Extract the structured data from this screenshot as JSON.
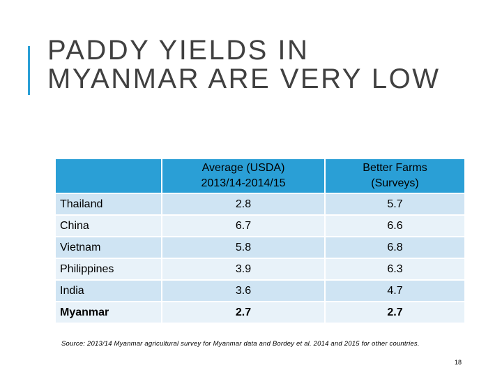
{
  "slide": {
    "title_lines": [
      "PADDY YIELDS IN",
      "MYANMAR ARE VERY LOW"
    ],
    "accent_color": "#2a9fd6",
    "header_color": "#2a9fd6",
    "row_color_odd": "#cfe4f3",
    "row_color_even": "#e8f2f9"
  },
  "table": {
    "headers": [
      [],
      [
        "Average (USDA)",
        "2013/14-2014/15"
      ],
      [
        "Better Farms",
        "(Surveys)"
      ]
    ],
    "rows": [
      {
        "country": "Thailand",
        "average": "2.8",
        "better": "5.7"
      },
      {
        "country": "China",
        "average": "6.7",
        "better": "6.6"
      },
      {
        "country": "Vietnam",
        "average": "5.8",
        "better": "6.8"
      },
      {
        "country": "Philippines",
        "average": "3.9",
        "better": "6.3"
      },
      {
        "country": "India",
        "average": "3.6",
        "better": "4.7"
      },
      {
        "country": "Myanmar",
        "average": "2.7",
        "better": "2.7",
        "bold": true
      }
    ]
  },
  "footer": {
    "source": "Source: 2013/14 Myanmar agricultural survey for Myanmar data and Bordey et al. 2014 and 2015 for other countries.",
    "page_number": "18"
  }
}
